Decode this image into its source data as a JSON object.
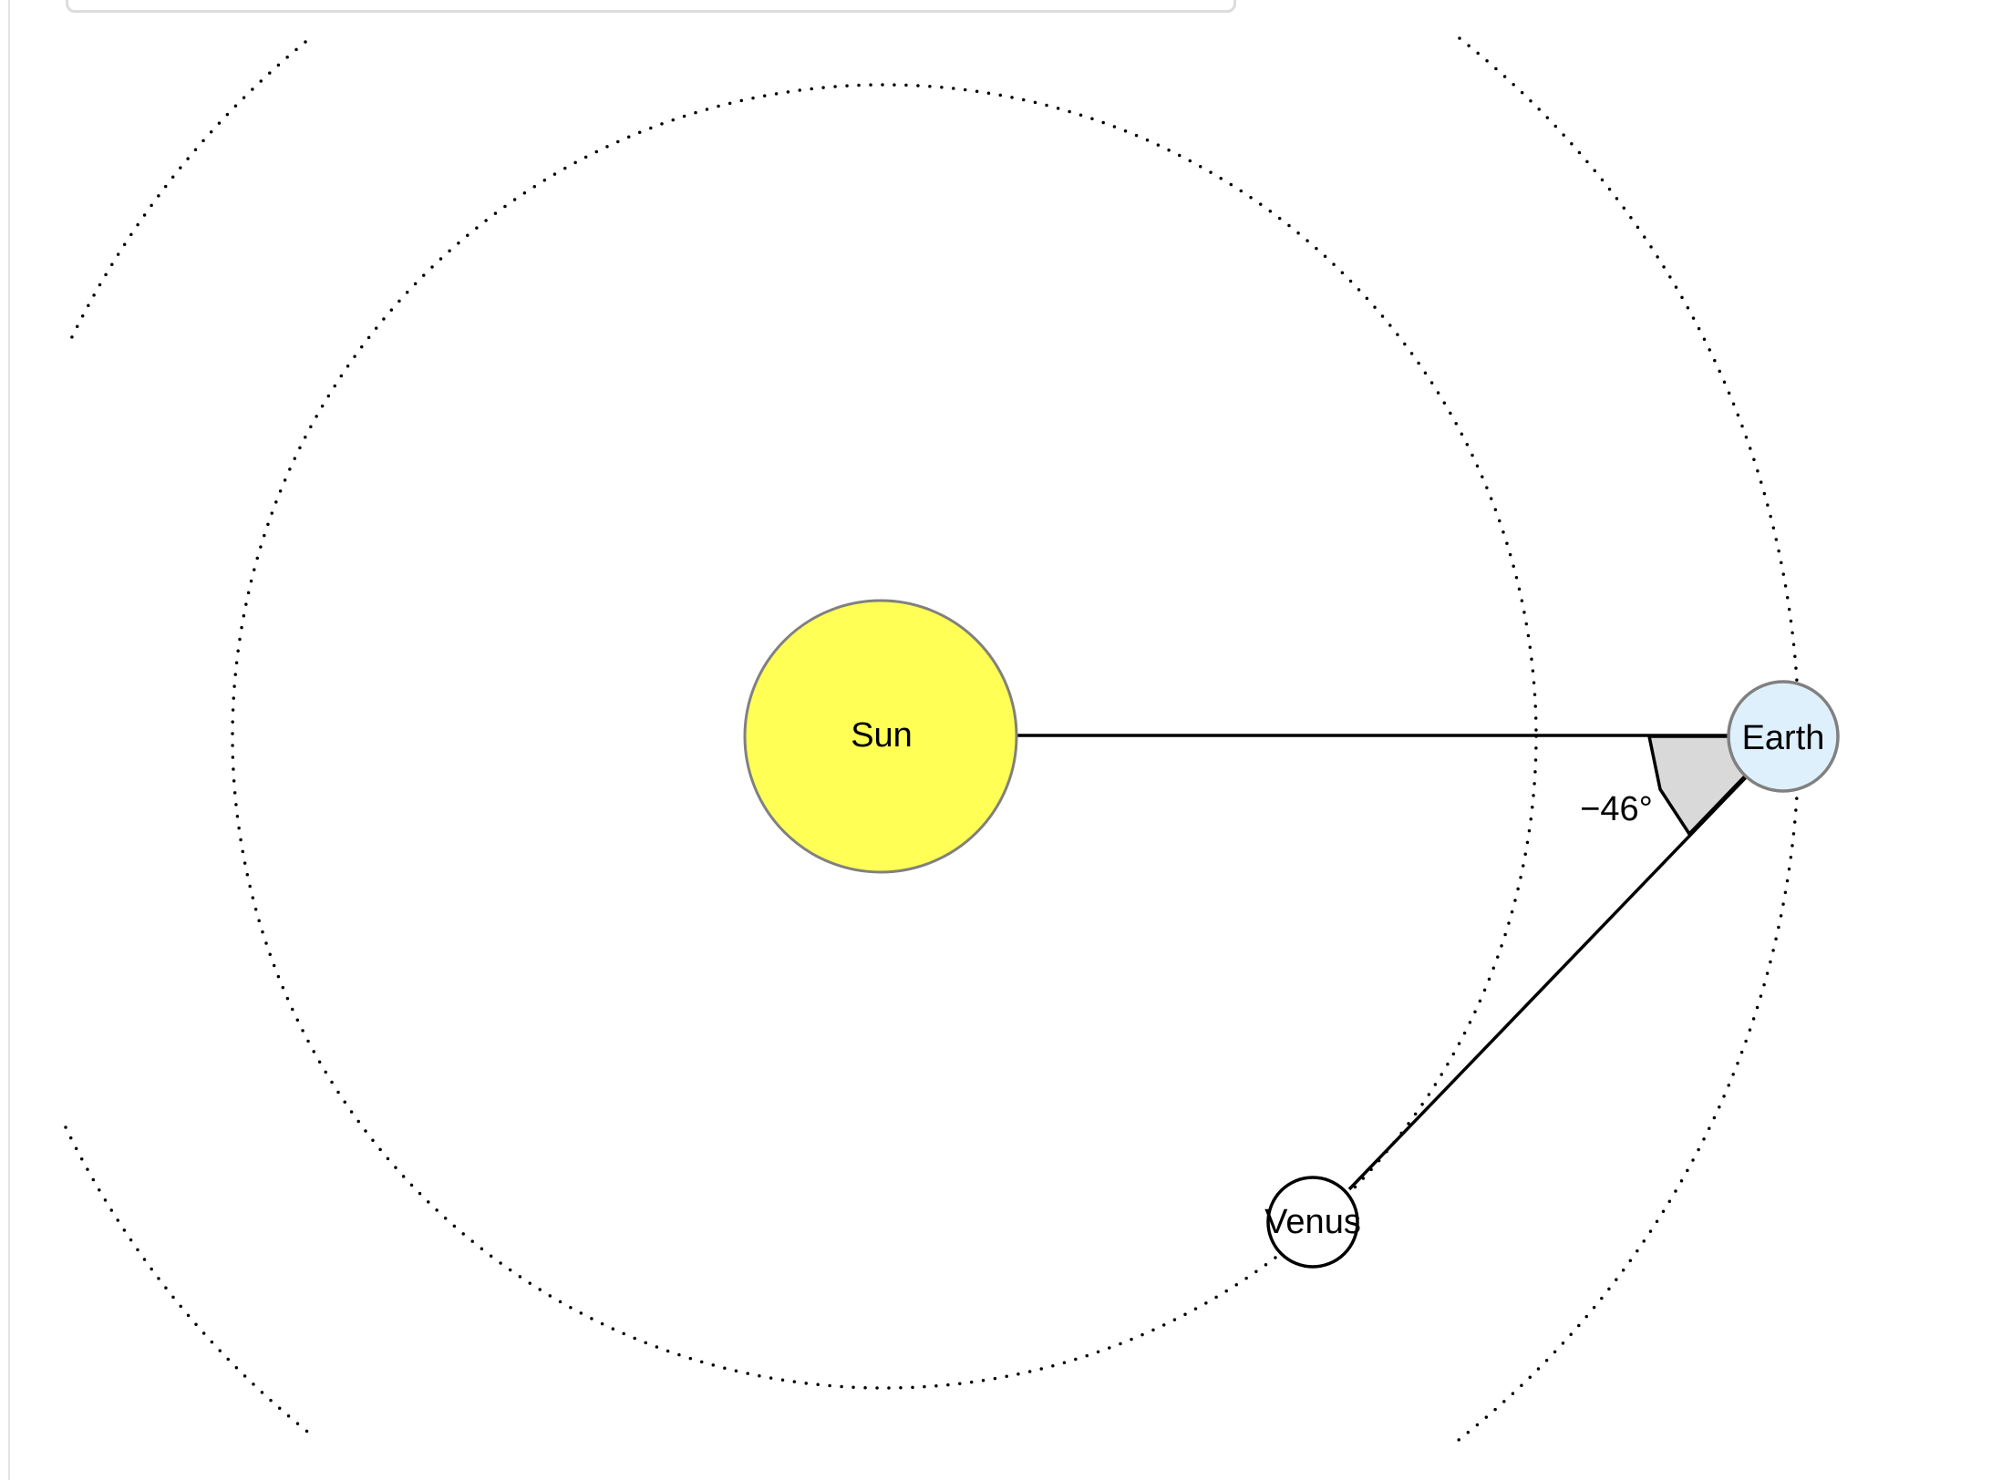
{
  "diagram": {
    "bodies": {
      "sun": {
        "label": "Sun",
        "fill": "#ffff55",
        "stroke": "#808080"
      },
      "earth": {
        "label": "Earth",
        "fill": "#dff0fd",
        "stroke": "#808080"
      },
      "venus": {
        "label": "Venus",
        "fill": "#ffffff",
        "stroke": "#000000"
      }
    },
    "angle": {
      "label": "−46°",
      "fill": "#d9d9d9"
    },
    "panel_border_color": "#dcdcdc"
  }
}
